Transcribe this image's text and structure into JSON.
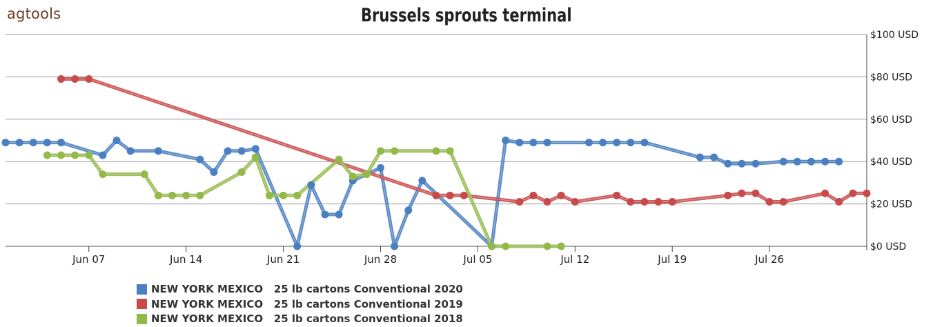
{
  "logo": "agtools",
  "chart_data": {
    "type": "line",
    "title": "Brussels sprouts terminal",
    "y_axis": {
      "min": 0,
      "max": 100,
      "ticks": [
        0,
        20,
        40,
        60,
        80,
        100
      ],
      "tick_labels": [
        "$0 USD",
        "$20 USD",
        "$40 USD",
        "$60 USD",
        "$80 USD",
        "$100 USD"
      ],
      "position": "right"
    },
    "x_axis": {
      "ticks": [
        "2020-06-07",
        "2020-06-14",
        "2020-06-21",
        "2020-06-28",
        "2020-07-05",
        "2020-07-12",
        "2020-07-19",
        "2020-07-26"
      ],
      "tick_labels": [
        "Jun 07",
        "Jun 14",
        "Jun 21",
        "Jun 28",
        "Jul 05",
        "Jul 12",
        "Jul 19",
        "Jul 26"
      ],
      "range": [
        "2020-06-01",
        "2020-08-02"
      ]
    },
    "grid": true,
    "legend_position": "bottom",
    "series": [
      {
        "name": "NEW YORK MEXICO   25 lb cartons Conventional 2020",
        "color": "#4a7fc1",
        "x": [
          "2020-06-01",
          "2020-06-02",
          "2020-06-03",
          "2020-06-04",
          "2020-06-05",
          "2020-06-08",
          "2020-06-09",
          "2020-06-10",
          "2020-06-12",
          "2020-06-15",
          "2020-06-16",
          "2020-06-17",
          "2020-06-18",
          "2020-06-19",
          "2020-06-22",
          "2020-06-23",
          "2020-06-24",
          "2020-06-25",
          "2020-06-26",
          "2020-06-28",
          "2020-06-29",
          "2020-06-30",
          "2020-07-01",
          "2020-07-06",
          "2020-07-07",
          "2020-07-08",
          "2020-07-09",
          "2020-07-10",
          "2020-07-13",
          "2020-07-14",
          "2020-07-15",
          "2020-07-16",
          "2020-07-17",
          "2020-07-21",
          "2020-07-22",
          "2020-07-23",
          "2020-07-24",
          "2020-07-25",
          "2020-07-27",
          "2020-07-28",
          "2020-07-29",
          "2020-07-30",
          "2020-07-31"
        ],
        "values": [
          49,
          49,
          49,
          49,
          49,
          43,
          50,
          45,
          45,
          41,
          35,
          45,
          45,
          46,
          0,
          29,
          15,
          15,
          31,
          37,
          0,
          17,
          31,
          0,
          50,
          49,
          49,
          49,
          49,
          49,
          49,
          49,
          49,
          42,
          42,
          39,
          39,
          39,
          40,
          40,
          40,
          40,
          40
        ]
      },
      {
        "name": "NEW YORK MEXICO   25 lb cartons Conventional 2019",
        "color": "#c94a4a",
        "x": [
          "2020-06-05",
          "2020-06-06",
          "2020-06-07",
          "2020-07-02",
          "2020-07-03",
          "2020-07-04",
          "2020-07-08",
          "2020-07-09",
          "2020-07-10",
          "2020-07-11",
          "2020-07-12",
          "2020-07-15",
          "2020-07-16",
          "2020-07-17",
          "2020-07-18",
          "2020-07-19",
          "2020-07-23",
          "2020-07-24",
          "2020-07-25",
          "2020-07-26",
          "2020-07-27",
          "2020-07-30",
          "2020-07-31",
          "2020-08-01",
          "2020-08-02"
        ],
        "values": [
          79,
          79,
          79,
          24,
          24,
          24,
          21,
          24,
          21,
          24,
          21,
          24,
          21,
          21,
          21,
          21,
          24,
          25,
          25,
          21,
          21,
          25,
          21,
          25,
          25
        ]
      },
      {
        "name": "NEW YORK MEXICO   25 lb cartons Conventional 2018",
        "color": "#93b94a",
        "x": [
          "2020-06-04",
          "2020-06-05",
          "2020-06-06",
          "2020-06-07",
          "2020-06-08",
          "2020-06-11",
          "2020-06-12",
          "2020-06-13",
          "2020-06-14",
          "2020-06-15",
          "2020-06-18",
          "2020-06-19",
          "2020-06-20",
          "2020-06-21",
          "2020-06-22",
          "2020-06-25",
          "2020-06-26",
          "2020-06-27",
          "2020-06-28",
          "2020-06-29",
          "2020-07-02",
          "2020-07-03",
          "2020-07-06",
          "2020-07-07",
          "2020-07-10",
          "2020-07-11"
        ],
        "values": [
          43,
          43,
          43,
          43,
          34,
          34,
          24,
          24,
          24,
          24,
          35,
          42,
          24,
          24,
          24,
          41,
          33,
          34,
          45,
          45,
          45,
          45,
          0,
          0,
          0,
          0
        ]
      }
    ]
  }
}
